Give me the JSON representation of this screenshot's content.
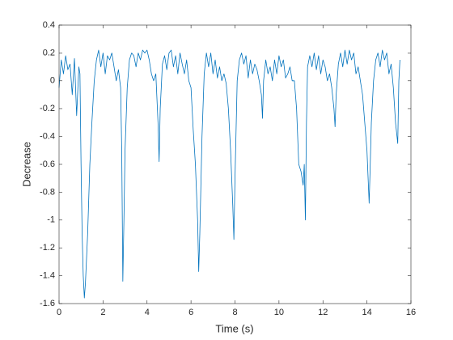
{
  "chart_data": {
    "type": "line",
    "x_label": "Time (s)",
    "y_label": "Decrease",
    "xlim": [
      0,
      16
    ],
    "ylim": [
      -1.6,
      0.4
    ],
    "xticks": [
      0,
      2,
      4,
      6,
      8,
      10,
      12,
      14,
      16
    ],
    "yticks": [
      -1.6,
      -1.4,
      -1.2,
      -1,
      -0.8,
      -0.6,
      -0.4,
      -0.2,
      0,
      0.2,
      0.4
    ],
    "x": [
      0,
      0.1,
      0.2,
      0.3,
      0.4,
      0.5,
      0.6,
      0.7,
      0.8,
      0.9,
      0.95,
      1.0,
      1.05,
      1.1,
      1.15,
      1.2,
      1.3,
      1.4,
      1.5,
      1.6,
      1.7,
      1.8,
      1.9,
      2.0,
      2.1,
      2.2,
      2.3,
      2.4,
      2.5,
      2.6,
      2.7,
      2.8,
      2.85,
      2.9,
      2.95,
      3.0,
      3.1,
      3.2,
      3.3,
      3.4,
      3.5,
      3.6,
      3.7,
      3.8,
      3.9,
      4.0,
      4.1,
      4.2,
      4.3,
      4.4,
      4.5,
      4.55,
      4.6,
      4.7,
      4.8,
      4.9,
      5.0,
      5.1,
      5.2,
      5.3,
      5.4,
      5.5,
      5.6,
      5.7,
      5.8,
      5.9,
      6.0,
      6.1,
      6.2,
      6.3,
      6.35,
      6.4,
      6.5,
      6.6,
      6.7,
      6.8,
      6.9,
      7.0,
      7.1,
      7.2,
      7.3,
      7.4,
      7.5,
      7.6,
      7.7,
      7.8,
      7.9,
      7.95,
      8.0,
      8.1,
      8.2,
      8.3,
      8.4,
      8.5,
      8.6,
      8.7,
      8.8,
      8.9,
      9.0,
      9.1,
      9.2,
      9.25,
      9.3,
      9.4,
      9.5,
      9.6,
      9.7,
      9.8,
      9.9,
      10.0,
      10.1,
      10.2,
      10.3,
      10.4,
      10.5,
      10.6,
      10.7,
      10.8,
      10.9,
      11.0,
      11.1,
      11.15,
      11.2,
      11.25,
      11.3,
      11.4,
      11.5,
      11.6,
      11.7,
      11.8,
      11.9,
      12.0,
      12.1,
      12.2,
      12.3,
      12.4,
      12.5,
      12.55,
      12.6,
      12.7,
      12.8,
      12.9,
      13.0,
      13.1,
      13.2,
      13.3,
      13.4,
      13.5,
      13.6,
      13.7,
      13.8,
      13.9,
      14.0,
      14.1,
      14.15,
      14.2,
      14.3,
      14.4,
      14.5,
      14.6,
      14.7,
      14.8,
      14.9,
      15.0,
      15.1,
      15.2,
      15.3,
      15.4,
      15.45,
      15.5
    ],
    "series": [
      {
        "color": "#0072bd",
        "values": [
          -0.05,
          0.15,
          0.05,
          0.18,
          0.08,
          0.12,
          -0.1,
          0.16,
          -0.25,
          0.1,
          0.05,
          -0.6,
          -1.1,
          -1.4,
          -1.56,
          -1.45,
          -1.1,
          -0.6,
          -0.28,
          0.0,
          0.15,
          0.22,
          0.1,
          0.2,
          0.05,
          0.18,
          0.15,
          0.2,
          0.1,
          0.0,
          0.08,
          -0.05,
          -0.5,
          -1.44,
          -1.0,
          -0.5,
          -0.05,
          0.15,
          0.2,
          0.18,
          0.1,
          0.2,
          0.15,
          0.22,
          0.2,
          0.22,
          0.15,
          0.05,
          0.0,
          0.05,
          -0.3,
          -0.58,
          -0.2,
          0.12,
          0.18,
          0.08,
          0.2,
          0.22,
          0.1,
          0.18,
          0.05,
          0.2,
          0.12,
          0.05,
          0.15,
          0.0,
          -0.05,
          -0.35,
          -0.6,
          -1.0,
          -1.37,
          -1.1,
          -0.4,
          0.05,
          0.2,
          0.1,
          0.2,
          0.05,
          0.15,
          0.02,
          0.1,
          0.0,
          0.05,
          -0.02,
          -0.2,
          -0.5,
          -0.9,
          -1.14,
          -0.7,
          0.0,
          0.15,
          0.2,
          0.12,
          0.18,
          0.02,
          0.15,
          0.05,
          0.12,
          0.08,
          0.0,
          -0.1,
          -0.27,
          0.0,
          0.15,
          0.05,
          0.1,
          0.0,
          0.15,
          0.05,
          0.18,
          0.1,
          0.15,
          0.02,
          0.05,
          0.1,
          0.0,
          0.0,
          -0.2,
          -0.6,
          -0.65,
          -0.75,
          -0.6,
          -1.0,
          -0.3,
          0.1,
          0.18,
          0.1,
          0.2,
          0.08,
          0.18,
          0.05,
          0.15,
          0.1,
          0.0,
          0.05,
          -0.05,
          -0.2,
          -0.33,
          -0.1,
          0.12,
          0.2,
          0.1,
          0.22,
          0.12,
          0.22,
          0.15,
          0.2,
          0.05,
          0.1,
          0.0,
          -0.1,
          -0.3,
          -0.5,
          -0.88,
          -0.6,
          -0.3,
          0.0,
          0.15,
          0.2,
          0.1,
          0.22,
          0.15,
          0.2,
          0.05,
          0.12,
          -0.05,
          -0.3,
          -0.45,
          0.0,
          0.15
        ]
      }
    ]
  }
}
